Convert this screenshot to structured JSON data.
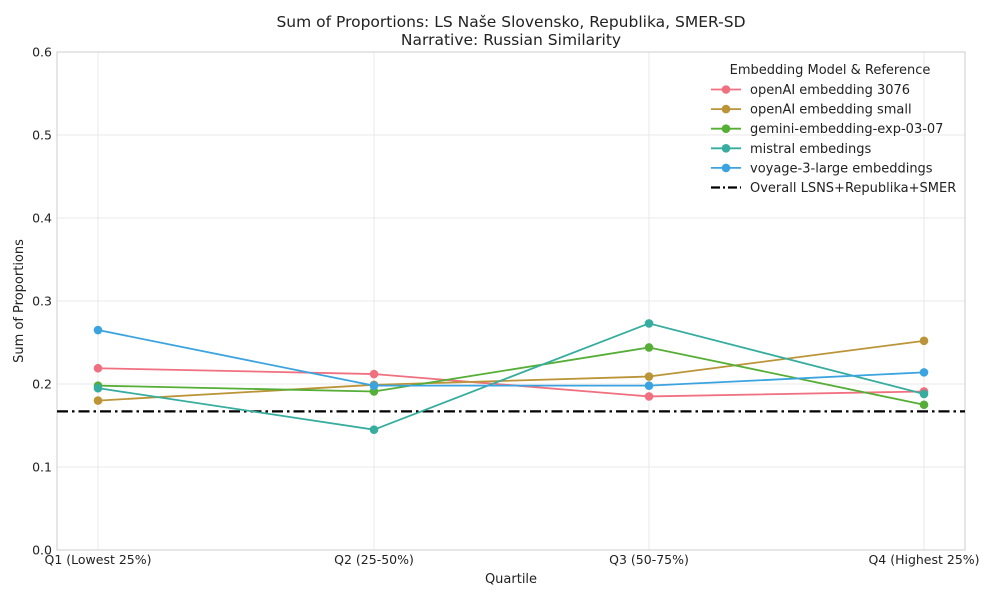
{
  "chart_data": {
    "type": "line",
    "title": "Sum of Proportions: LS Naše Slovensko, Republika, SMER-SD",
    "subtitle": "Narrative: Russian Similarity",
    "xlabel": "Quartile",
    "ylabel": "Sum of Proportions",
    "categories": [
      "Q1 (Lowest 25%)",
      "Q2 (25-50%)",
      "Q3 (50-75%)",
      "Q4 (Highest 25%)"
    ],
    "ylim": [
      0,
      0.6
    ],
    "yticks": [
      "0.0",
      "0.1",
      "0.2",
      "0.3",
      "0.4",
      "0.5",
      "0.6"
    ],
    "grid": true,
    "legend": {
      "title": "Embedding Model & Reference",
      "placement": "top-right"
    },
    "series": [
      {
        "name": "openAI embedding 3076",
        "color": "#f07080",
        "values": [
          0.219,
          0.212,
          0.185,
          0.191
        ]
      },
      {
        "name": "openAI embedding small",
        "color": "#bb9437",
        "values": [
          0.18,
          0.199,
          0.209,
          0.252
        ]
      },
      {
        "name": "gemini-embedding-exp-03-07",
        "color": "#55ae35",
        "values": [
          0.198,
          0.191,
          0.244,
          0.175
        ]
      },
      {
        "name": "mistral embedings",
        "color": "#36ad9e",
        "values": [
          0.195,
          0.145,
          0.273,
          0.188
        ]
      },
      {
        "name": "voyage-3-large embeddings",
        "color": "#3ba4e0",
        "values": [
          0.265,
          0.198,
          0.198,
          0.214
        ]
      }
    ],
    "reference": {
      "name": "Overall LSNS+Republika+SMER",
      "color": "#000000",
      "value": 0.167
    }
  }
}
